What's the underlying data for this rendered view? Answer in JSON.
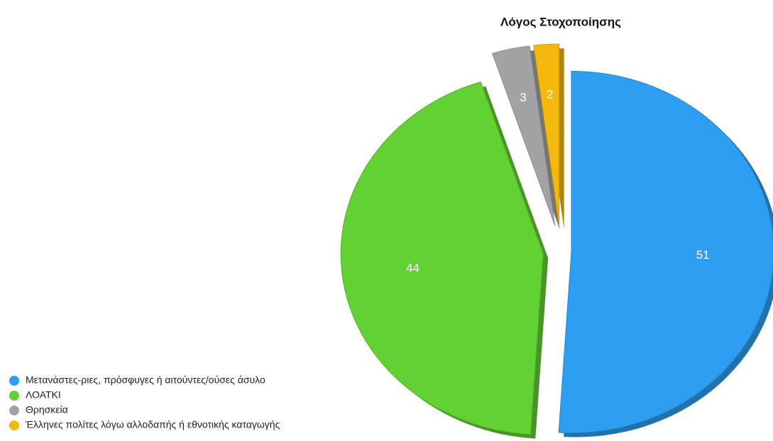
{
  "chart_data": {
    "type": "pie",
    "title": "Λόγος Στοχοποίησης",
    "categories": [
      "Μετανάστες-ριες, πρόσφυγες ή αιτούντες/ούσες άσυλο",
      "ΛΟΑΤΚΙ",
      "Θρησκεία",
      "Έλληνες πολίτες λόγω αλλοδαπής ή εθνοτικής καταγωγής"
    ],
    "values": [
      51,
      44,
      3,
      2
    ],
    "colors": [
      "#2d9ef2",
      "#62d133",
      "#a3a3a3",
      "#f4b90c"
    ],
    "legend": "bottom-left"
  }
}
